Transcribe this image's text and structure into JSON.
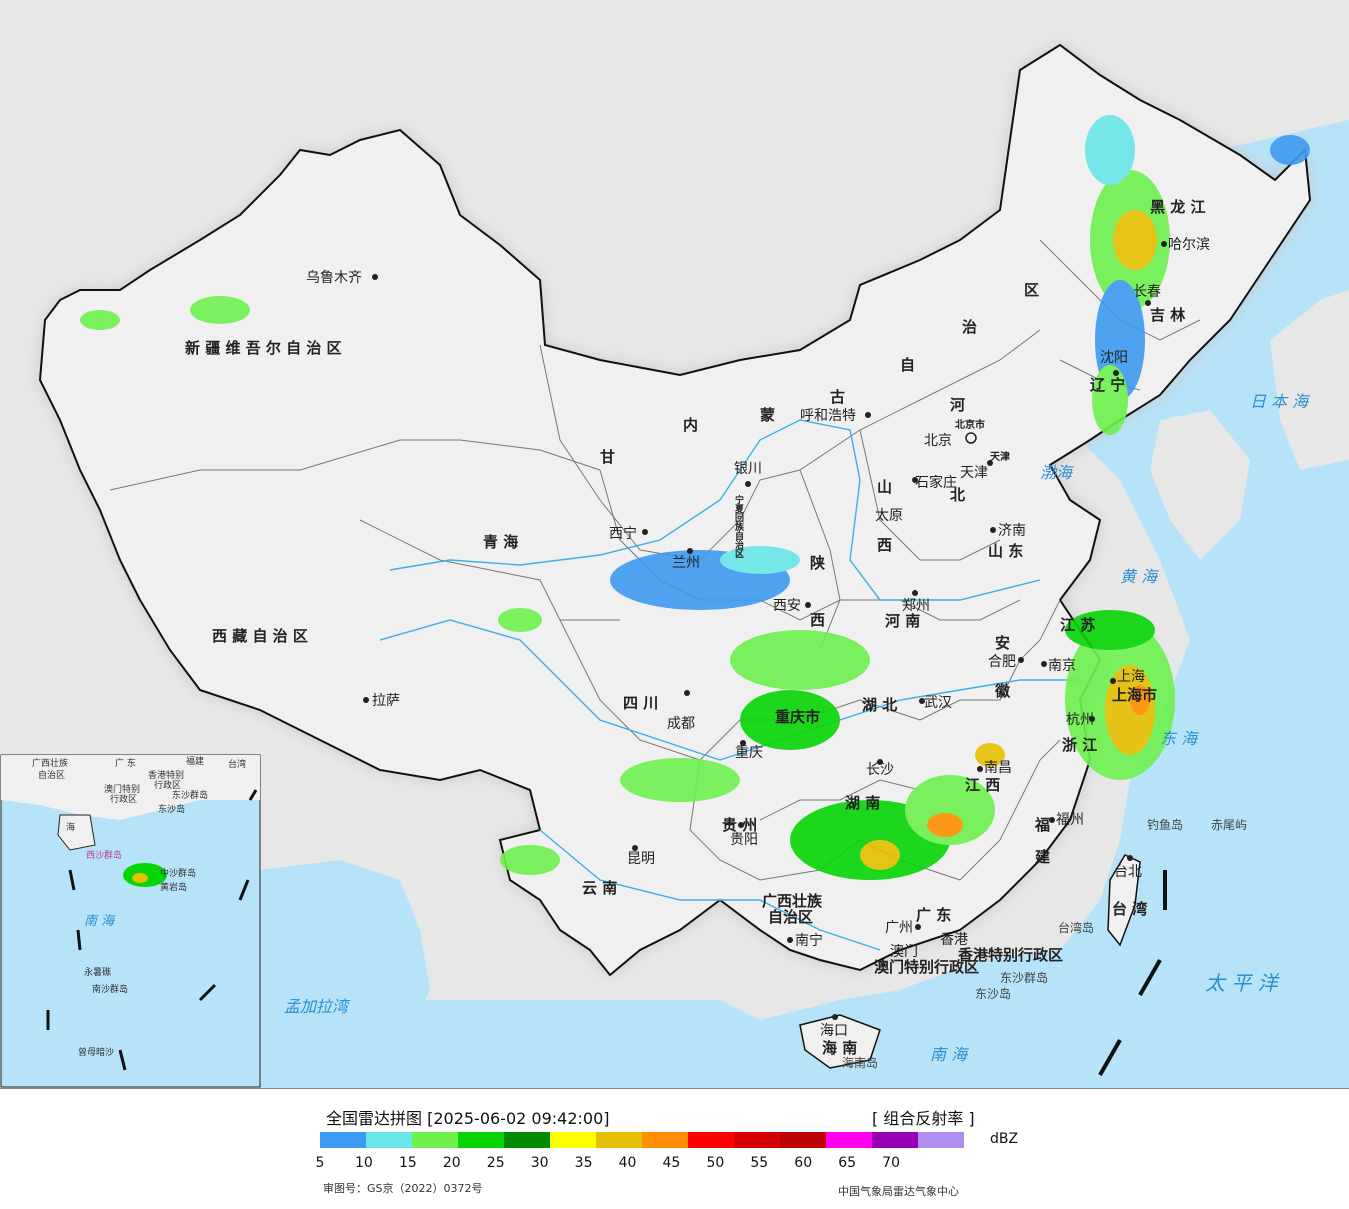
{
  "map": {
    "colors": {
      "sea": "#b6e3f8",
      "land": "#f0f0f0",
      "outside": "#e7e7e7",
      "border": "#111111",
      "province": "#777777",
      "river": "#3ab0e6"
    },
    "city_labels": [
      {
        "id": "urumqi",
        "text": "乌鲁木齐"
      },
      {
        "id": "lhasa",
        "text": "拉萨"
      },
      {
        "id": "xining",
        "text": "西宁"
      },
      {
        "id": "lanzhou",
        "text": "兰州"
      },
      {
        "id": "yinchuan",
        "text": "银川"
      },
      {
        "id": "hohhot",
        "text": "呼和浩特"
      },
      {
        "id": "beijing",
        "text": "北京"
      },
      {
        "id": "tianjin",
        "text": "天津"
      },
      {
        "id": "shijiazhuang",
        "text": "石家庄"
      },
      {
        "id": "taiyuan",
        "text": "太原"
      },
      {
        "id": "jinan",
        "text": "济南"
      },
      {
        "id": "zhengzhou",
        "text": "郑州"
      },
      {
        "id": "xian",
        "text": "西安"
      },
      {
        "id": "chengdu",
        "text": "成都"
      },
      {
        "id": "chongqing",
        "text": "重庆"
      },
      {
        "id": "guiyang",
        "text": "贵阳"
      },
      {
        "id": "kunming",
        "text": "昆明"
      },
      {
        "id": "nanning",
        "text": "南宁"
      },
      {
        "id": "guangzhou",
        "text": "广州"
      },
      {
        "id": "macau",
        "text": "澳门"
      },
      {
        "id": "hongkong",
        "text": "香港"
      },
      {
        "id": "haikou",
        "text": "海口"
      },
      {
        "id": "changsha",
        "text": "长沙"
      },
      {
        "id": "wuhan",
        "text": "武汉"
      },
      {
        "id": "nanchang",
        "text": "南昌"
      },
      {
        "id": "hefei",
        "text": "合肥"
      },
      {
        "id": "nanjing",
        "text": "南京"
      },
      {
        "id": "hangzhou",
        "text": "杭州"
      },
      {
        "id": "shanghai",
        "text": "上海"
      },
      {
        "id": "fuzhou",
        "text": "福州"
      },
      {
        "id": "taibei",
        "text": "台北"
      },
      {
        "id": "shenyang",
        "text": "沈阳"
      },
      {
        "id": "changchun",
        "text": "长春"
      },
      {
        "id": "harbin",
        "text": "哈尔滨"
      }
    ],
    "region_labels": [
      {
        "id": "xinjiang",
        "text": "新 疆 维 吾 尔 自 治 区"
      },
      {
        "id": "xizang",
        "text": "西 藏 自 治 区"
      },
      {
        "id": "qinghai",
        "text": "青    海"
      },
      {
        "id": "gansu",
        "text": "甘"
      },
      {
        "id": "neimeng_1",
        "text": "内"
      },
      {
        "id": "neimeng_2",
        "text": "蒙"
      },
      {
        "id": "neimeng_3",
        "text": "古"
      },
      {
        "id": "neimeng_4",
        "text": "自"
      },
      {
        "id": "neimeng_5",
        "text": "治"
      },
      {
        "id": "neimeng_6",
        "text": "区"
      },
      {
        "id": "heilongjiang",
        "text": "黑 龙 江"
      },
      {
        "id": "jilin",
        "text": "吉 林"
      },
      {
        "id": "liaoning",
        "text": "辽 宁"
      },
      {
        "id": "hebei_1",
        "text": "河"
      },
      {
        "id": "hebei_2",
        "text": "北"
      },
      {
        "id": "shanxi_1",
        "text": "山"
      },
      {
        "id": "shanxi_2",
        "text": "西"
      },
      {
        "id": "shandong",
        "text": "山 东"
      },
      {
        "id": "shaanxi_1",
        "text": "陕"
      },
      {
        "id": "shaanxi_2",
        "text": "西"
      },
      {
        "id": "henan",
        "text": "河 南"
      },
      {
        "id": "sichuan",
        "text": "四   川"
      },
      {
        "id": "chongqing_r",
        "text": "重庆市"
      },
      {
        "id": "hubei",
        "text": "湖   北"
      },
      {
        "id": "anhui_1",
        "text": "安"
      },
      {
        "id": "anhui_2",
        "text": "徽"
      },
      {
        "id": "jiangsu",
        "text": "江 苏"
      },
      {
        "id": "shanghai_r",
        "text": "上海市"
      },
      {
        "id": "zhejiang",
        "text": "浙 江"
      },
      {
        "id": "hunan",
        "text": "湖   南"
      },
      {
        "id": "jiangxi",
        "text": "江   西"
      },
      {
        "id": "fujian_1",
        "text": "福"
      },
      {
        "id": "fujian_2",
        "text": "建"
      },
      {
        "id": "guizhou",
        "text": "贵   州"
      },
      {
        "id": "yunnan",
        "text": "云    南"
      },
      {
        "id": "guangxi_1",
        "text": "广西壮族"
      },
      {
        "id": "guangxi_2",
        "text": "自治区"
      },
      {
        "id": "guangdong",
        "text": "广   东"
      },
      {
        "id": "hainan",
        "text": "海   南"
      },
      {
        "id": "taiwan",
        "text": "台 湾"
      },
      {
        "id": "hk_sar",
        "text": "香港特别行政区"
      },
      {
        "id": "macau_sar",
        "text": "澳门特别行政区"
      },
      {
        "id": "ningxia",
        "text": "宁夏回族自治区"
      },
      {
        "id": "tianjin_r",
        "text": "天津"
      },
      {
        "id": "beijing_r",
        "text": "北京市"
      }
    ],
    "sea_labels": [
      {
        "id": "bohai",
        "text": "渤海"
      },
      {
        "id": "huanghai",
        "text": "黄 海"
      },
      {
        "id": "donghai",
        "text": "东 海"
      },
      {
        "id": "nanhai",
        "text": "南   海"
      },
      {
        "id": "taipingyang",
        "text": "太  平  洋"
      },
      {
        "id": "ribenhai",
        "text": "日 本 海"
      },
      {
        "id": "mengjiala",
        "text": "孟加拉湾"
      }
    ],
    "island_labels": [
      {
        "id": "diaoyu",
        "text": "钓鱼岛"
      },
      {
        "id": "chiwei",
        "text": "赤尾屿"
      },
      {
        "id": "dongsha",
        "text": "东沙群岛"
      },
      {
        "id": "dongsha_dao",
        "text": "东沙岛"
      },
      {
        "id": "taiwan_dao",
        "text": "台湾岛"
      },
      {
        "id": "hainan_dao",
        "text": "海南岛"
      }
    ],
    "inset_labels": [
      {
        "id": "i_gx",
        "text": "广西壮族"
      },
      {
        "id": "i_gx2",
        "text": "自治区"
      },
      {
        "id": "i_gd",
        "text": "广 东"
      },
      {
        "id": "i_fj",
        "text": "福建"
      },
      {
        "id": "i_tw",
        "text": "台湾"
      },
      {
        "id": "i_hk",
        "text": "香港特别"
      },
      {
        "id": "i_hk2",
        "text": "行政区"
      },
      {
        "id": "i_mo",
        "text": "澳门特别"
      },
      {
        "id": "i_mo2",
        "text": "行政区"
      },
      {
        "id": "i_dongsha",
        "text": "东沙群岛"
      },
      {
        "id": "i_dongsha2",
        "text": "东沙岛"
      },
      {
        "id": "i_hn",
        "text": "海"
      },
      {
        "id": "i_xisha",
        "text": "西沙群岛"
      },
      {
        "id": "i_zhongsha",
        "text": "中沙群岛"
      },
      {
        "id": "i_huangyan",
        "text": "黄岩岛"
      },
      {
        "id": "i_nanhai",
        "text": "南    海"
      },
      {
        "id": "i_nansha",
        "text": "南沙群岛"
      },
      {
        "id": "i_yongshu",
        "text": "永暑礁"
      },
      {
        "id": "i_zengmu",
        "text": "曾母暗沙"
      }
    ]
  },
  "legend": {
    "title": "全国雷达拼图 [2025-06-02 09:42:00]",
    "product": "[ 组合反射率 ]",
    "unit": "dBZ",
    "colors": [
      "#3e9af0",
      "#68e7e8",
      "#6ef14f",
      "#07d506",
      "#008a00",
      "#ffff00",
      "#e5c000",
      "#ff8e00",
      "#ff0000",
      "#d50000",
      "#c00000",
      "#ff00f0",
      "#9600b4",
      "#ae8ef0"
    ],
    "ticks": [
      "5",
      "10",
      "15",
      "20",
      "25",
      "30",
      "35",
      "40",
      "45",
      "50",
      "55",
      "60",
      "65",
      "70"
    ],
    "approval": "审图号：GS京（2022）0372号",
    "credit": "中国气象局雷达气象中心"
  }
}
